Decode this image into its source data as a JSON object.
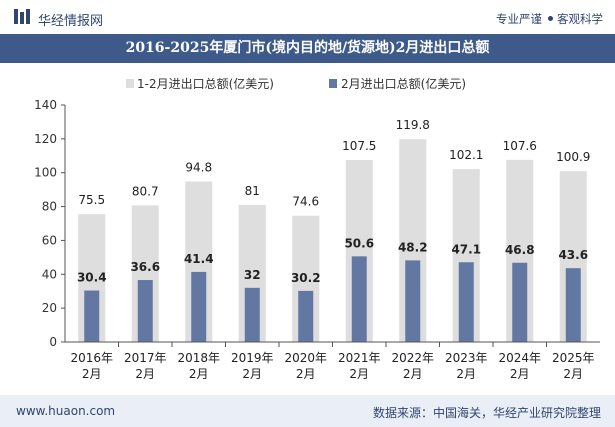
{
  "header": {
    "brand": "华经情报网",
    "tagline_left": "专业严谨",
    "tagline_right": "客观科学"
  },
  "title": "2016-2025年厦门市(境内目的地/货源地)2月进出口总额",
  "footer": {
    "website": "www.huaon.com",
    "source": "数据来源：中国海关，华经产业研究院整理"
  },
  "colors": {
    "header_text": "#30466e",
    "title_bg": "#3d5a8a",
    "series_total": "#dedede",
    "series_feb": "#6377a3",
    "footer_bg": "#e9eef7"
  },
  "chart_data": {
    "type": "bar",
    "categories": [
      "2016年\n2月",
      "2017年\n2月",
      "2018年\n2月",
      "2019年\n2月",
      "2020年\n2月",
      "2021年\n2月",
      "2022年\n2月",
      "2023年\n2月",
      "2024年\n2月",
      "2025年\n2月"
    ],
    "series": [
      {
        "name": "1-2月进出口总额(亿美元)",
        "values": [
          75.5,
          80.7,
          94.8,
          81,
          74.6,
          107.5,
          119.8,
          102.1,
          107.6,
          100.9
        ]
      },
      {
        "name": "2月进出口总额(亿美元)",
        "values": [
          30.4,
          36.6,
          41.4,
          32,
          30.2,
          50.6,
          48.2,
          47.1,
          46.8,
          43.6
        ]
      }
    ],
    "value_labels": [
      [
        "75.5",
        "80.7",
        "94.8",
        "81",
        "74.6",
        "107.5",
        "119.8",
        "102.1",
        "107.6",
        "100.9"
      ],
      [
        "30.4",
        "36.6",
        "41.4",
        "32",
        "30.2",
        "50.6",
        "48.2",
        "47.1",
        "46.8",
        "43.6"
      ]
    ],
    "ylim": [
      0,
      140
    ],
    "yticks": [
      "0",
      "20",
      "40",
      "60",
      "80",
      "100",
      "120",
      "140"
    ],
    "legend_position": "top",
    "grid": false
  }
}
